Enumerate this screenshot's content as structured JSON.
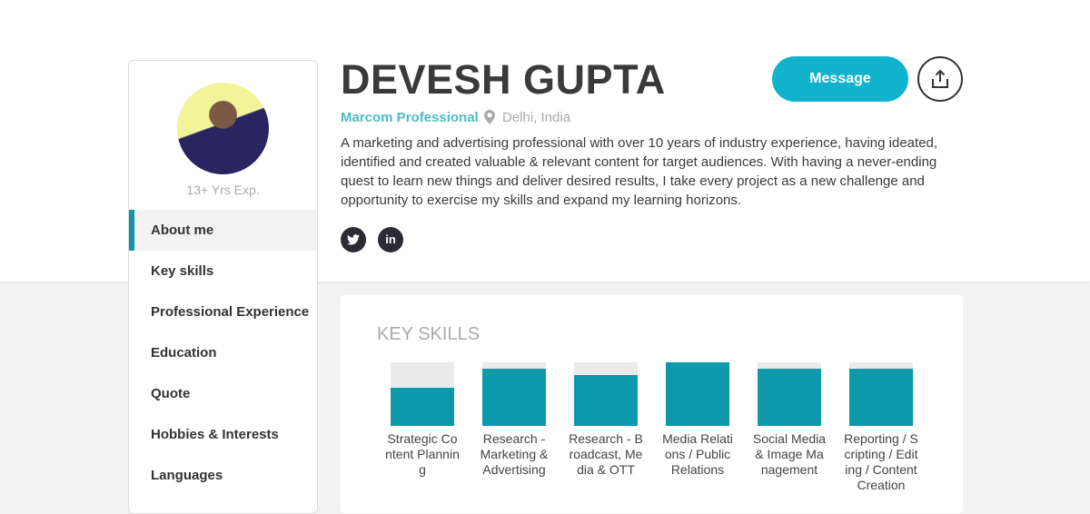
{
  "profile": {
    "name": "DEVESH GUPTA",
    "role": "Marcom Professional",
    "location": "Delhi, India",
    "experience": "13+ Yrs Exp.",
    "bio": "A marketing and advertising professional with over 10 years of industry experience, having ideated, identified and created valuable & relevant content for target audiences. With having a never-ending quest to learn new things and deliver desired results, I take every project as a new challenge and opportunity to exercise my skills and expand my learning horizons."
  },
  "actions": {
    "message": "Message"
  },
  "social": [
    {
      "icon": "twitter-icon"
    },
    {
      "icon": "linkedin-icon",
      "text": "in"
    }
  ],
  "nav": [
    "About me",
    "Key skills",
    "Professional Experience",
    "Education",
    "Quote",
    "Hobbies & Interests",
    "Languages"
  ],
  "active_nav": "About me",
  "key_skills": {
    "title": "KEY SKILLS",
    "accent": "#0e98ab",
    "items": [
      {
        "label": "Strategic Content Planning",
        "level": 60
      },
      {
        "label": "Research - Marketing & Advertising",
        "level": 90
      },
      {
        "label": "Research - Broadcast, Media & OTT",
        "level": 80
      },
      {
        "label": "Media Relations / Public Relations",
        "level": 100
      },
      {
        "label": "Social Media & Image Management",
        "level": 90
      },
      {
        "label": "Reporting / Scripting / Editing / Content Creation",
        "level": 90
      }
    ]
  }
}
